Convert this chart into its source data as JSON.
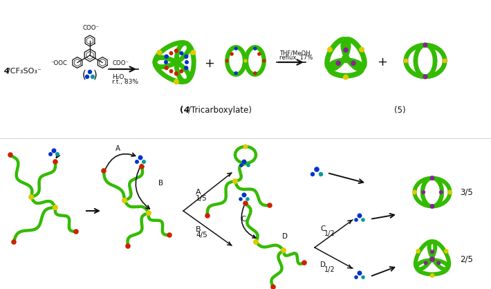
{
  "background_color": "#ffffff",
  "top": {
    "label4": "4",
    "label_rest": "/CF₃SO₃⁻",
    "arrow1_text1": "H₂O,",
    "arrow1_text2": "r.t., 83%",
    "arrow2_text1": "THF/MeOH,",
    "arrow2_text2": "reflux, 17%",
    "caption1": "(4/Tricarboxylate)",
    "caption2": "(5)"
  },
  "bottom": {
    "lbl_A": "A",
    "lbl_B": "B",
    "lbl_C": "C",
    "lbl_D": "D",
    "frac_A": "1/5",
    "frac_B": "4/5",
    "frac_C": "1/2",
    "frac_D": "1/2",
    "ratio1": "3/5",
    "ratio2": "2/5"
  },
  "colors": {
    "green": "#33bb00",
    "yellow": "#ddcc00",
    "blue": "#0033cc",
    "teal": "#009999",
    "red": "#cc2200",
    "purple": "#882299",
    "dark_green": "#004400",
    "black": "#111111",
    "white": "#ffffff",
    "gray": "#888888"
  },
  "lw_chain": 3.2,
  "lw_tube": 5.0,
  "dot_r": 3.5
}
